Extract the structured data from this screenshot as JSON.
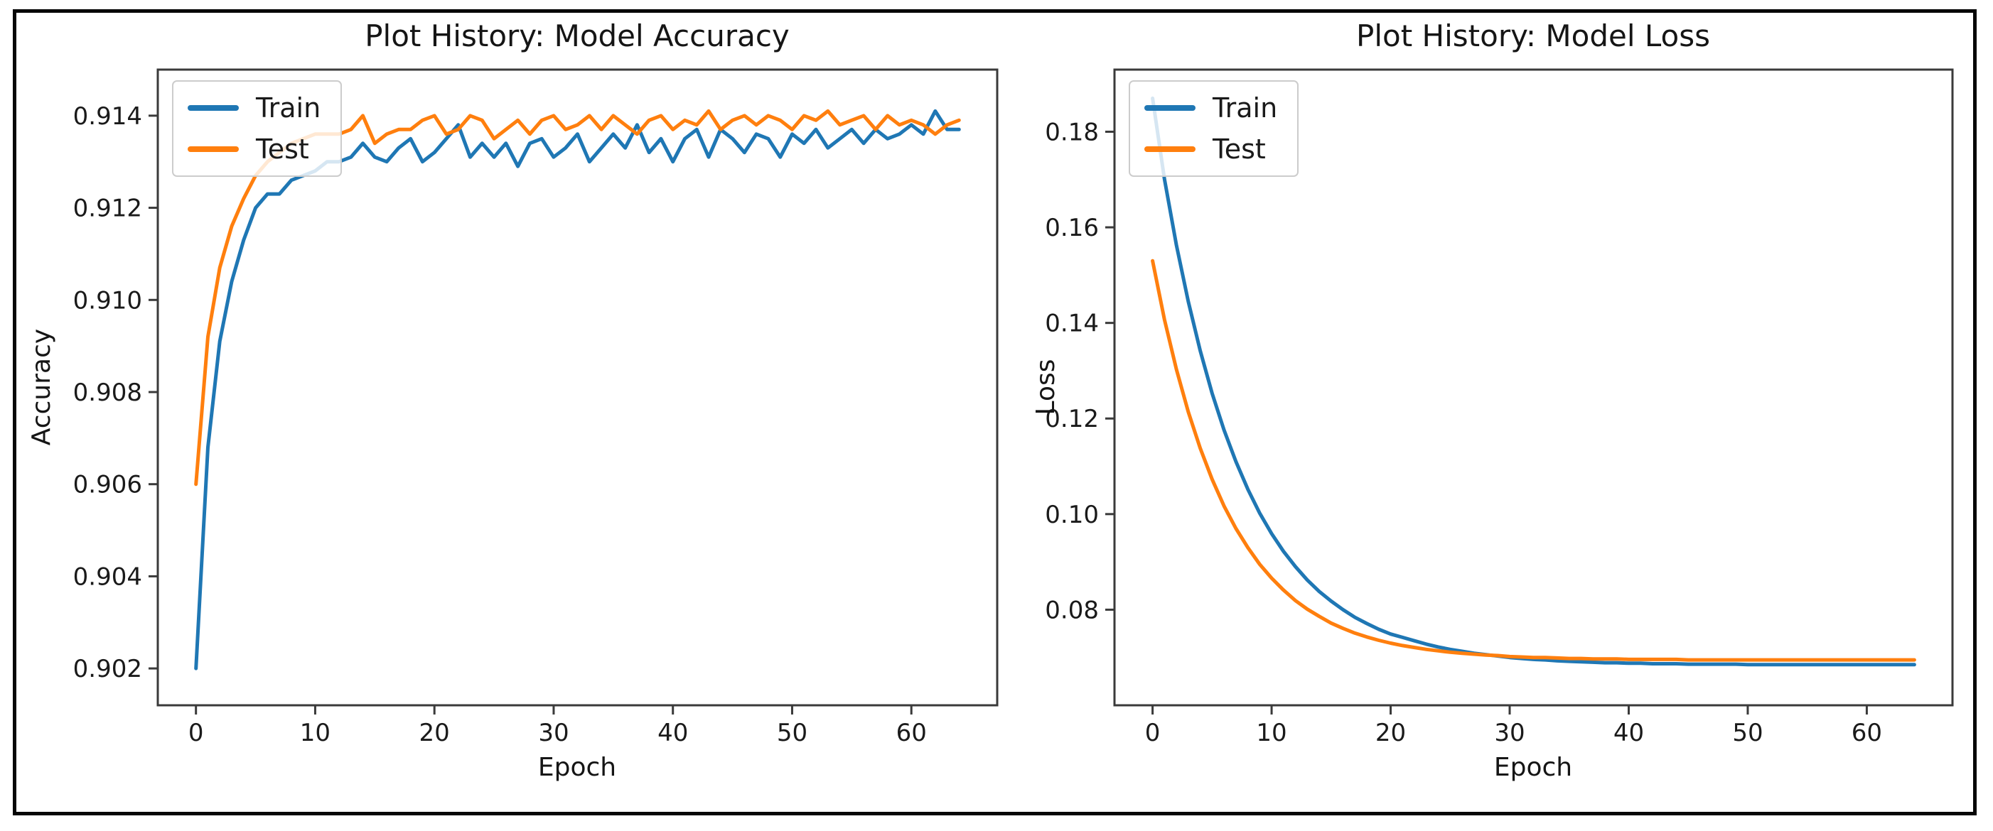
{
  "figure": {
    "background": "#ffffff",
    "border_color": "#060606"
  },
  "colors": {
    "train_line": "#1f77b4",
    "test_line": "#ff7f0e",
    "spine": "#3a3a3a",
    "tick_text": "#1a1a1a",
    "legend_border": "#cccccc"
  },
  "chart_data": [
    {
      "type": "line",
      "title": "Plot History: Model Accuracy",
      "xlabel": "Epoch",
      "ylabel": "Accuracy",
      "grid": false,
      "legend_position": "upper left",
      "legend_entries": [
        "Train",
        "Test"
      ],
      "x_note": "x value = epoch index 0..64",
      "xlim": [
        -3.2,
        67.2
      ],
      "ylim": [
        0.9012,
        0.915
      ],
      "xticks": [
        0,
        10,
        20,
        30,
        40,
        50,
        60
      ],
      "xtick_labels": [
        "0",
        "10",
        "20",
        "30",
        "40",
        "50",
        "60"
      ],
      "yticks": [
        0.902,
        0.904,
        0.906,
        0.908,
        0.91,
        0.912,
        0.914
      ],
      "ytick_labels": [
        "0.902",
        "0.904",
        "0.906",
        "0.908",
        "0.910",
        "0.912",
        "0.914"
      ],
      "series": [
        {
          "name": "Train",
          "color": "#1f77b4",
          "values": [
            0.902,
            0.9068,
            0.9091,
            0.9104,
            0.9113,
            0.912,
            0.9123,
            0.9123,
            0.9126,
            0.9127,
            0.9128,
            0.913,
            0.913,
            0.9131,
            0.9134,
            0.9131,
            0.913,
            0.9133,
            0.9135,
            0.913,
            0.9132,
            0.9135,
            0.9138,
            0.9131,
            0.9134,
            0.9131,
            0.9134,
            0.9129,
            0.9134,
            0.9135,
            0.9131,
            0.9133,
            0.9136,
            0.913,
            0.9133,
            0.9136,
            0.9133,
            0.9138,
            0.9132,
            0.9135,
            0.913,
            0.9135,
            0.9137,
            0.9131,
            0.9137,
            0.9135,
            0.9132,
            0.9136,
            0.9135,
            0.9131,
            0.9136,
            0.9134,
            0.9137,
            0.9133,
            0.9135,
            0.9137,
            0.9134,
            0.9137,
            0.9135,
            0.9136,
            0.9138,
            0.9136,
            0.9141,
            0.9137,
            0.9137
          ]
        },
        {
          "name": "Test",
          "color": "#ff7f0e",
          "values": [
            0.906,
            0.9092,
            0.9107,
            0.9116,
            0.9122,
            0.9127,
            0.913,
            0.9132,
            0.9134,
            0.9135,
            0.9136,
            0.9136,
            0.9136,
            0.9137,
            0.914,
            0.9134,
            0.9136,
            0.9137,
            0.9137,
            0.9139,
            0.914,
            0.9136,
            0.9137,
            0.914,
            0.9139,
            0.9135,
            0.9137,
            0.9139,
            0.9136,
            0.9139,
            0.914,
            0.9137,
            0.9138,
            0.914,
            0.9137,
            0.914,
            0.9138,
            0.9136,
            0.9139,
            0.914,
            0.9137,
            0.9139,
            0.9138,
            0.9141,
            0.9137,
            0.9139,
            0.914,
            0.9138,
            0.914,
            0.9139,
            0.9137,
            0.914,
            0.9139,
            0.9141,
            0.9138,
            0.9139,
            0.914,
            0.9137,
            0.914,
            0.9138,
            0.9139,
            0.9138,
            0.9136,
            0.9138,
            0.9139
          ]
        }
      ]
    },
    {
      "type": "line",
      "title": "Plot History: Model Loss",
      "xlabel": "Epoch",
      "ylabel": "Loss",
      "grid": false,
      "legend_position": "upper left",
      "legend_entries": [
        "Train",
        "Test"
      ],
      "x_note": "x value = epoch index 0..64",
      "xlim": [
        -3.2,
        67.2
      ],
      "ylim": [
        0.06,
        0.193
      ],
      "xticks": [
        0,
        10,
        20,
        30,
        40,
        50,
        60
      ],
      "xtick_labels": [
        "0",
        "10",
        "20",
        "30",
        "40",
        "50",
        "60"
      ],
      "yticks": [
        0.08,
        0.1,
        0.12,
        0.14,
        0.16,
        0.18
      ],
      "ytick_labels": [
        "0.08",
        "0.10",
        "0.12",
        "0.14",
        "0.16",
        "0.18"
      ],
      "series": [
        {
          "name": "Train",
          "color": "#1f77b4",
          "values": [
            0.187,
            0.1701,
            0.1563,
            0.1445,
            0.1342,
            0.1253,
            0.1176,
            0.111,
            0.1052,
            0.1002,
            0.0959,
            0.0922,
            0.089,
            0.0862,
            0.0838,
            0.0818,
            0.08,
            0.0784,
            0.0771,
            0.0759,
            0.0749,
            0.0742,
            0.0735,
            0.0728,
            0.0722,
            0.0717,
            0.0713,
            0.0709,
            0.0706,
            0.0703,
            0.07,
            0.0698,
            0.0696,
            0.0695,
            0.0693,
            0.0692,
            0.0691,
            0.069,
            0.0689,
            0.0689,
            0.0688,
            0.0688,
            0.0687,
            0.0687,
            0.0687,
            0.0686,
            0.0686,
            0.0686,
            0.0686,
            0.0686,
            0.0685,
            0.0685,
            0.0685,
            0.0685,
            0.0685,
            0.0685,
            0.0685,
            0.0685,
            0.0685,
            0.0685,
            0.0685,
            0.0685,
            0.0685,
            0.0685,
            0.0685
          ]
        },
        {
          "name": "Test",
          "color": "#ff7f0e",
          "values": [
            0.153,
            0.1407,
            0.1303,
            0.1214,
            0.1138,
            0.1073,
            0.1017,
            0.097,
            0.093,
            0.0895,
            0.0866,
            0.0841,
            0.0819,
            0.0801,
            0.0786,
            0.0772,
            0.0761,
            0.0751,
            0.0743,
            0.0736,
            0.073,
            0.0725,
            0.0721,
            0.0717,
            0.0714,
            0.0711,
            0.0709,
            0.0707,
            0.0705,
            0.0704,
            0.0702,
            0.0701,
            0.07,
            0.07,
            0.0699,
            0.0698,
            0.0698,
            0.0697,
            0.0697,
            0.0697,
            0.0696,
            0.0696,
            0.0696,
            0.0696,
            0.0696,
            0.0695,
            0.0695,
            0.0695,
            0.0695,
            0.0695,
            0.0695,
            0.0695,
            0.0695,
            0.0695,
            0.0695,
            0.0695,
            0.0695,
            0.0695,
            0.0695,
            0.0695,
            0.0695,
            0.0695,
            0.0695,
            0.0695,
            0.0695
          ]
        }
      ]
    }
  ]
}
